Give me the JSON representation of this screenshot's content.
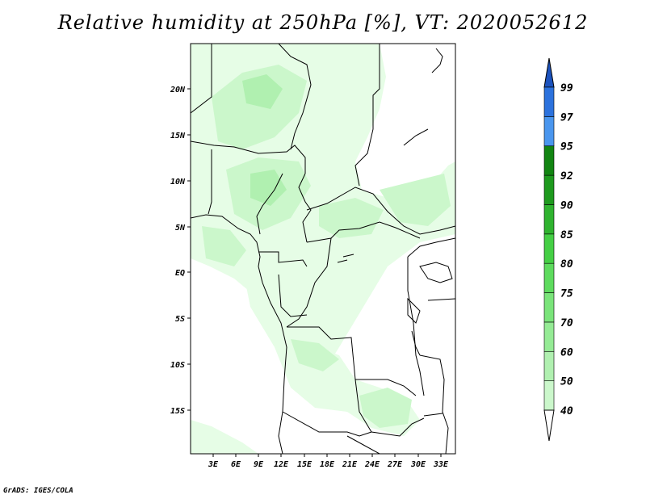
{
  "title": "Relative humidity at 250hPa [%], VT: 2020052612",
  "credit": "GrADS: IGES/COLA",
  "map": {
    "lon_labels": [
      "3E",
      "6E",
      "9E",
      "12E",
      "15E",
      "18E",
      "21E",
      "24E",
      "27E",
      "30E",
      "33E"
    ],
    "lat_labels": [
      "20N",
      "15N",
      "10N",
      "5N",
      "EQ",
      "5S",
      "10S",
      "15S"
    ]
  },
  "colorbar": {
    "levels": [
      "40",
      "50",
      "60",
      "70",
      "75",
      "80",
      "85",
      "90",
      "92",
      "95",
      "97",
      "99"
    ],
    "colors": [
      "#e6fde6",
      "#cbf7cb",
      "#b0f0b0",
      "#95eb95",
      "#7ae47a",
      "#5edb5e",
      "#45cf45",
      "#2fb32f",
      "#1e9a1e",
      "#128512",
      "#4a96ee",
      "#2c72dd",
      "#1c53be"
    ]
  }
}
